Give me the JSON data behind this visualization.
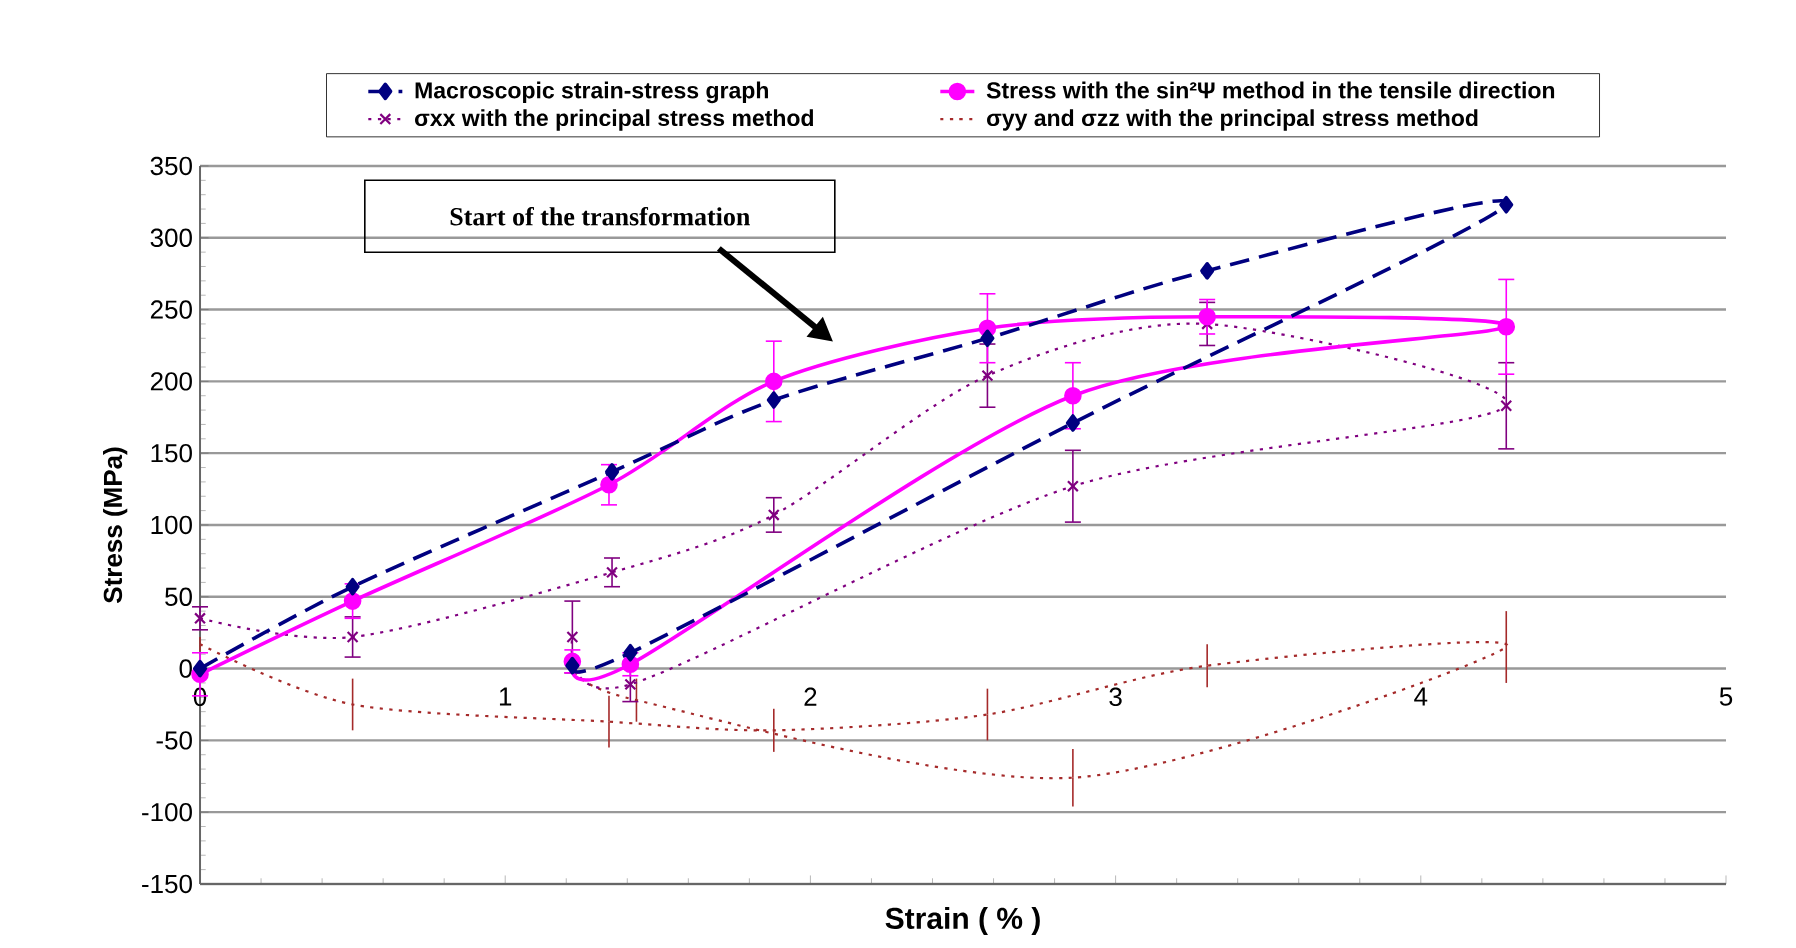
{
  "chart_data": {
    "type": "line",
    "xlabel": "Strain ( % )",
    "ylabel": "Stress (MPa)",
    "xlim": [
      0,
      5
    ],
    "xticks": [
      0,
      1,
      2,
      3,
      4,
      5
    ],
    "ylim": [
      -150,
      350
    ],
    "yticks": [
      -150,
      -100,
      -50,
      0,
      50,
      100,
      150,
      200,
      250,
      300,
      350
    ],
    "grid": "y",
    "legend": "top",
    "annotations": [
      "Start of the transformation"
    ],
    "series": [
      {
        "name": "Macroscopic strain-stress graph",
        "color": "#000080",
        "marker": "diamond",
        "line_style": "dashed",
        "x": [
          0,
          0.5,
          1.35,
          1.88,
          2.58,
          3.3,
          4.28,
          2.86,
          1.41,
          1.22
        ],
        "values": [
          0,
          57,
          137,
          187,
          230,
          277,
          323,
          171,
          11,
          2
        ]
      },
      {
        "name": "Stress with the sin²Ψ method in the tensile direction",
        "color": "#ff00ff",
        "marker": "circle",
        "line_style": "solid",
        "x": [
          0,
          0.5,
          1.34,
          1.88,
          2.58,
          3.3,
          4.28,
          2.86,
          1.41,
          1.22
        ],
        "values": [
          -4,
          47,
          128,
          200,
          237,
          245,
          238,
          190,
          3,
          5
        ],
        "errors": [
          15,
          12,
          14,
          28,
          24,
          12,
          33,
          23,
          8,
          8
        ]
      },
      {
        "name": "σxx with the principal stress method",
        "color": "#800080",
        "marker": "cross",
        "line_style": "dotted",
        "x": [
          0,
          0.5,
          1.35,
          1.88,
          2.58,
          3.3,
          4.28,
          2.86,
          1.41,
          1.22
        ],
        "values": [
          35,
          22,
          67,
          107,
          204,
          240,
          183,
          127,
          -11,
          22
        ],
        "errors": [
          8,
          14,
          10,
          12,
          22,
          15,
          30,
          25,
          12,
          25
        ]
      },
      {
        "name": "σyy and σzz with the principal stress method",
        "color": "#a52a2a",
        "marker": "none",
        "line_style": "dotted",
        "x": [
          0,
          0.5,
          1.34,
          1.88,
          2.58,
          3.3,
          4.28,
          2.86,
          1.43,
          1.22
        ],
        "values": [
          17,
          -25,
          -37,
          -43,
          -32,
          2,
          15,
          -76,
          -22,
          3
        ],
        "errors": [
          5,
          18,
          18,
          15,
          18,
          15,
          25,
          20,
          15,
          5
        ]
      }
    ]
  }
}
